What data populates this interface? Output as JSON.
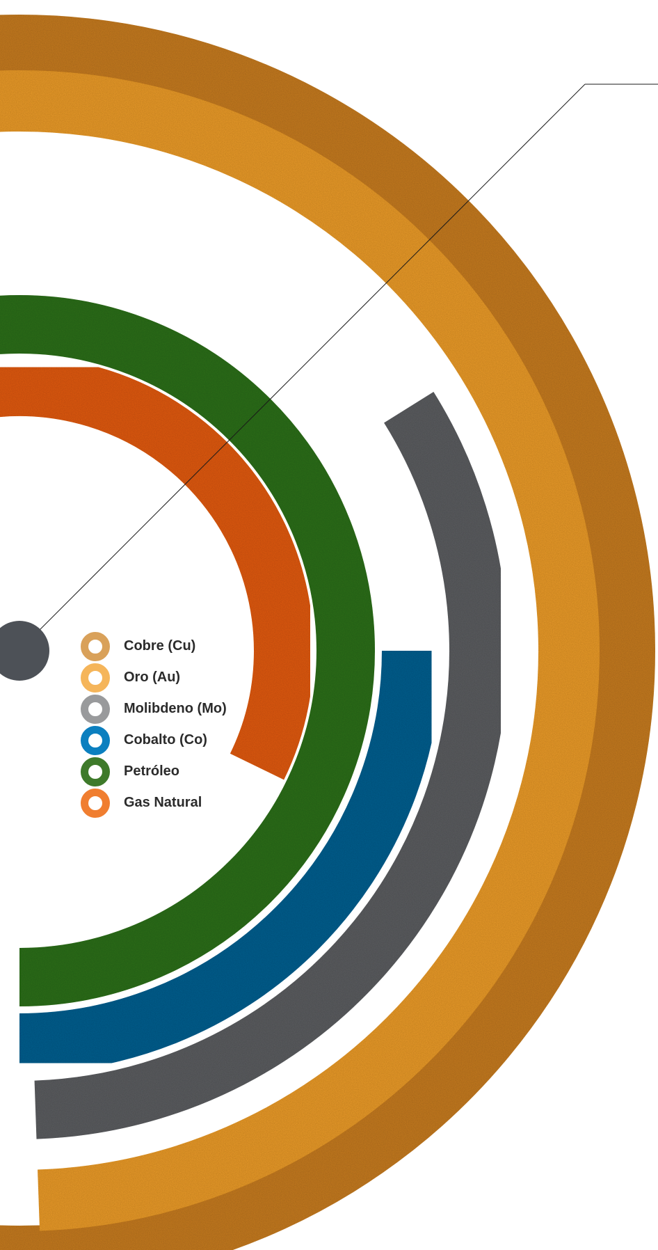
{
  "chart_data": {
    "type": "radial-bar",
    "legend_position": "center",
    "series": [
      {
        "name": "Cobre (Cu)",
        "color": "#c47a22",
        "ring": 1,
        "start_deg": 181,
        "end_deg": 509
      },
      {
        "name": "Oro (Au)",
        "color": "#e89a2a",
        "ring": 2,
        "start_deg": 180,
        "end_deg": 448
      },
      {
        "name": "Molibdeno (Mo)",
        "color": "#5b5d60",
        "ring": 3,
        "start_deg": 328,
        "end_deg": 448
      },
      {
        "name": "Cobalto (Co)",
        "color": "#0b5e8e",
        "ring": 4,
        "start_deg": 360,
        "end_deg": 450
      },
      {
        "name": "Petróleo",
        "color": "#2e6e1c",
        "ring": 5,
        "start_deg": 180,
        "end_deg": 450
      },
      {
        "name": "Gas Natural",
        "color": "#df5a12",
        "ring": 6,
        "start_deg": 180,
        "end_deg": 386
      }
    ],
    "legend": [
      {
        "label": "Cobre (Cu)",
        "color": "#d9a15a"
      },
      {
        "label": "Oro (Au)",
        "color": "#f5b55a"
      },
      {
        "label": "Molibdeno (Mo)",
        "color": "#999a9c"
      },
      {
        "label": "Cobalto (Co)",
        "color": "#0b7fbf"
      },
      {
        "label": "Petróleo",
        "color": "#3e7a2a"
      },
      {
        "label": "Gas Natural",
        "color": "#f07e30"
      }
    ],
    "center_dot_color": "#4d5157"
  }
}
